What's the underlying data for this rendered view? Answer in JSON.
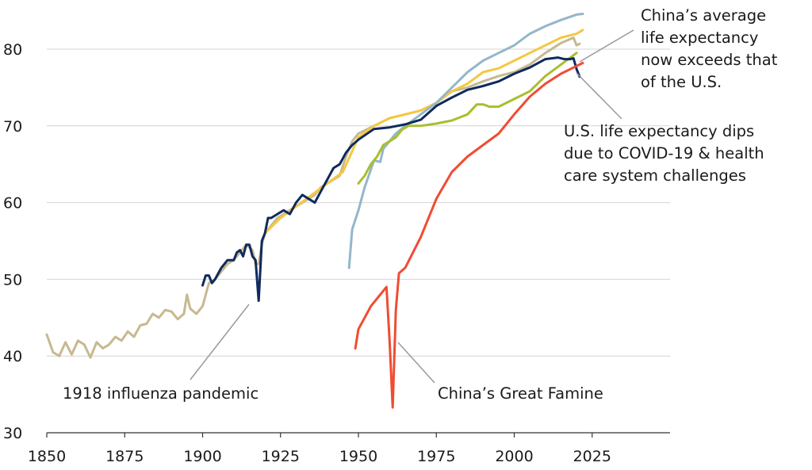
{
  "chart_data": {
    "type": "line",
    "title": "",
    "xlabel": "",
    "ylabel": "",
    "xlim": [
      1850,
      2050
    ],
    "ylim": [
      30,
      86
    ],
    "x_ticks": [
      "1850",
      "1875",
      "1900",
      "1925",
      "1950",
      "1975",
      "2000",
      "2025"
    ],
    "y_ticks": [
      "30",
      "40",
      "50",
      "60",
      "70",
      "80"
    ],
    "grid": "horizontal",
    "series": [
      {
        "color": "#c7b98f",
        "x": [
          1850,
          1852,
          1854,
          1856,
          1858,
          1860,
          1862,
          1864,
          1866,
          1868,
          1870,
          1872,
          1874,
          1876,
          1878,
          1880,
          1882,
          1884,
          1886,
          1888,
          1890,
          1892,
          1894,
          1895,
          1896,
          1898,
          1900,
          1902,
          1904,
          1906,
          1908,
          1910,
          1912,
          1914,
          1916,
          1917,
          1918,
          1919,
          1920,
          1922,
          1924,
          1926,
          1928,
          1930,
          1932,
          1934,
          1936,
          1938,
          1940,
          1942,
          1944,
          1946,
          1948,
          1950,
          1955,
          1960,
          1965,
          1970,
          1975,
          1980,
          1985,
          1990,
          1995,
          2000,
          2005,
          2010,
          2015,
          2019,
          2020,
          2021
        ],
        "values": [
          42.8,
          40.5,
          40.0,
          41.8,
          40.2,
          42.0,
          41.5,
          39.8,
          41.8,
          41.0,
          41.5,
          42.5,
          42.0,
          43.2,
          42.5,
          44.0,
          44.2,
          45.5,
          45.0,
          46.0,
          45.8,
          44.8,
          45.5,
          48.0,
          46.2,
          45.5,
          46.5,
          49.5,
          50.0,
          51.0,
          52.0,
          52.5,
          53.5,
          54.5,
          53.8,
          52.0,
          52.0,
          54.5,
          56.0,
          57.0,
          58.0,
          58.5,
          59.0,
          59.5,
          60.0,
          60.5,
          61.0,
          62.0,
          62.5,
          63.0,
          63.5,
          66.0,
          68.0,
          69.0,
          70.0,
          71.0,
          71.5,
          72.0,
          73.0,
          74.5,
          75.0,
          75.8,
          76.5,
          77.0,
          78.0,
          79.5,
          80.8,
          81.5,
          80.5,
          80.7
        ]
      },
      {
        "color": "#f5c842",
        "x": [
          1920,
          1925,
          1930,
          1935,
          1940,
          1945,
          1950,
          1955,
          1960,
          1965,
          1970,
          1975,
          1980,
          1985,
          1990,
          1995,
          2000,
          2005,
          2010,
          2015,
          2020,
          2022
        ],
        "values": [
          56.0,
          58.0,
          59.5,
          61.0,
          62.5,
          64.0,
          68.5,
          70.0,
          71.0,
          71.5,
          72.0,
          73.0,
          74.5,
          75.5,
          77.0,
          77.5,
          78.5,
          79.5,
          80.5,
          81.5,
          82.0,
          82.5
        ]
      },
      {
        "color": "#93b7c9",
        "x": [
          1947,
          1948,
          1950,
          1952,
          1955,
          1957,
          1958,
          1960,
          1962,
          1965,
          1970,
          1975,
          1980,
          1985,
          1990,
          1995,
          2000,
          2005,
          2010,
          2015,
          2020,
          2022
        ],
        "values": [
          51.5,
          56.5,
          59.0,
          62.0,
          65.5,
          65.3,
          67.0,
          68.0,
          69.0,
          70.0,
          71.5,
          73.0,
          75.0,
          77.0,
          78.5,
          79.5,
          80.5,
          82.0,
          83.0,
          83.8,
          84.5,
          84.6
        ]
      },
      {
        "color": "#a8bf2e",
        "x": [
          1950,
          1952,
          1954,
          1956,
          1958,
          1960,
          1962,
          1964,
          1966,
          1968,
          1970,
          1975,
          1980,
          1985,
          1988,
          1990,
          1992,
          1995,
          2000,
          2005,
          2010,
          2015,
          2020
        ],
        "values": [
          62.5,
          63.5,
          65.0,
          66.0,
          67.5,
          68.0,
          68.5,
          69.5,
          70.0,
          70.0,
          70.0,
          70.3,
          70.7,
          71.5,
          72.8,
          72.8,
          72.5,
          72.5,
          73.5,
          74.5,
          76.5,
          78.0,
          79.5
        ]
      },
      {
        "color": "#0f2a5e",
        "x": [
          1900,
          1901,
          1902,
          1903,
          1904,
          1906,
          1908,
          1910,
          1911,
          1912,
          1913,
          1914,
          1915,
          1916,
          1917,
          1918,
          1919,
          1920,
          1921,
          1922,
          1924,
          1926,
          1928,
          1930,
          1932,
          1934,
          1936,
          1938,
          1940,
          1942,
          1944,
          1946,
          1948,
          1950,
          1955,
          1960,
          1965,
          1970,
          1975,
          1980,
          1985,
          1990,
          1995,
          2000,
          2005,
          2010,
          2014,
          2016,
          2018,
          2019,
          2020,
          2021
        ],
        "values": [
          49.2,
          50.5,
          50.5,
          49.5,
          50.0,
          51.5,
          52.5,
          52.5,
          53.5,
          53.8,
          53.0,
          54.5,
          54.5,
          53.0,
          52.5,
          47.2,
          55.0,
          56.0,
          58.0,
          58.0,
          58.5,
          59.0,
          58.5,
          60.0,
          61.0,
          60.5,
          60.0,
          61.5,
          63.0,
          64.5,
          65.0,
          66.5,
          67.5,
          68.2,
          69.6,
          69.8,
          70.2,
          70.8,
          72.6,
          73.7,
          74.7,
          75.2,
          75.8,
          76.8,
          77.6,
          78.7,
          78.9,
          78.7,
          78.7,
          78.8,
          77.4,
          76.4
        ]
      },
      {
        "color": "#f04c32",
        "x": [
          1949,
          1950,
          1952,
          1954,
          1956,
          1958,
          1959,
          1960,
          1961,
          1962,
          1963,
          1965,
          1970,
          1975,
          1980,
          1985,
          1990,
          1995,
          2000,
          2005,
          2010,
          2015,
          2020,
          2022
        ],
        "values": [
          41.0,
          43.5,
          45.0,
          46.5,
          47.5,
          48.5,
          49.0,
          42.0,
          33.3,
          46.0,
          50.8,
          51.5,
          55.5,
          60.5,
          64.0,
          66.0,
          67.5,
          69.0,
          71.5,
          73.8,
          75.5,
          76.8,
          77.8,
          78.2
        ]
      }
    ],
    "annotations": {
      "influenza": "1918 influenza pandemic",
      "famine": "China’s Great Famine",
      "china_lines": [
        "China’s average",
        "life expectancy",
        "now exceeds that",
        "of the U.S."
      ],
      "us_lines": [
        "U.S. life expectancy dips",
        "due to COVID-19 & health",
        "care system challenges"
      ]
    }
  }
}
